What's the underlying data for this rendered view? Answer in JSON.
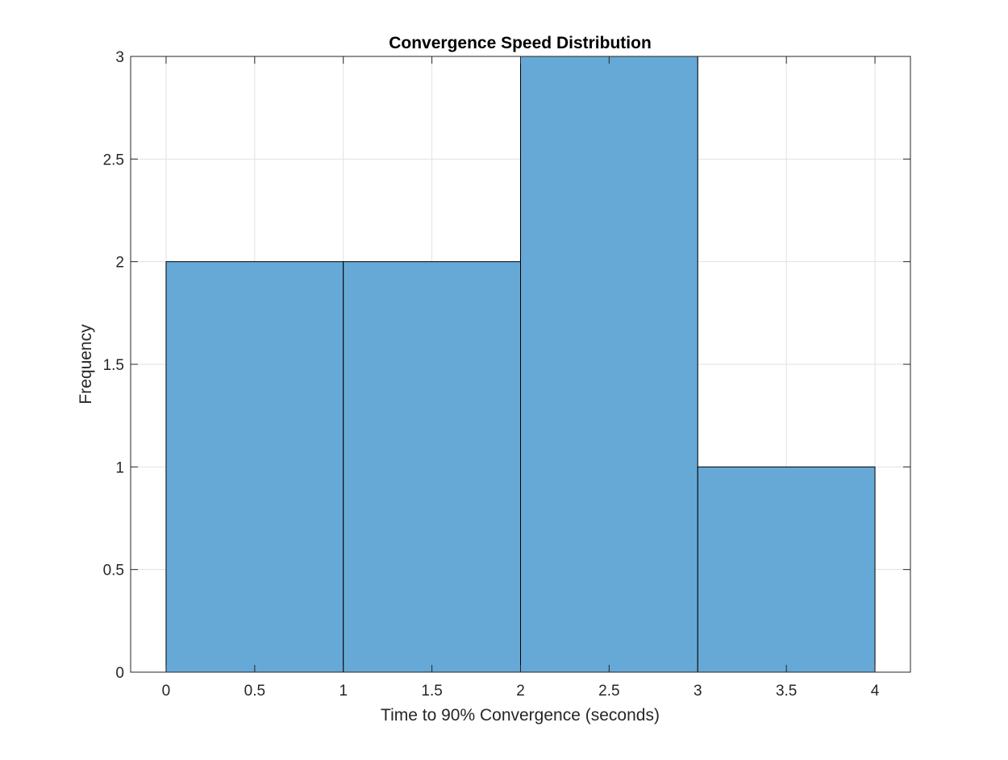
{
  "chart_data": {
    "type": "bar",
    "title": "Convergence Speed Distribution",
    "xlabel": "Time to 90% Convergence (seconds)",
    "ylabel": "Frequency",
    "bins": [
      {
        "from": 0,
        "to": 1,
        "value": 2
      },
      {
        "from": 1,
        "to": 2,
        "value": 2
      },
      {
        "from": 2,
        "to": 3,
        "value": 3
      },
      {
        "from": 3,
        "to": 4,
        "value": 1
      }
    ],
    "xlim": [
      -0.2,
      4.2
    ],
    "ylim": [
      0,
      3
    ],
    "xticks": [
      "0",
      "0.5",
      "1",
      "1.5",
      "2",
      "2.5",
      "3",
      "3.5",
      "4"
    ],
    "yticks": [
      "0",
      "0.5",
      "1",
      "1.5",
      "2",
      "2.5",
      "3"
    ],
    "grid": true,
    "bar_color": "#66a9d6",
    "edge_color": "#000000"
  }
}
